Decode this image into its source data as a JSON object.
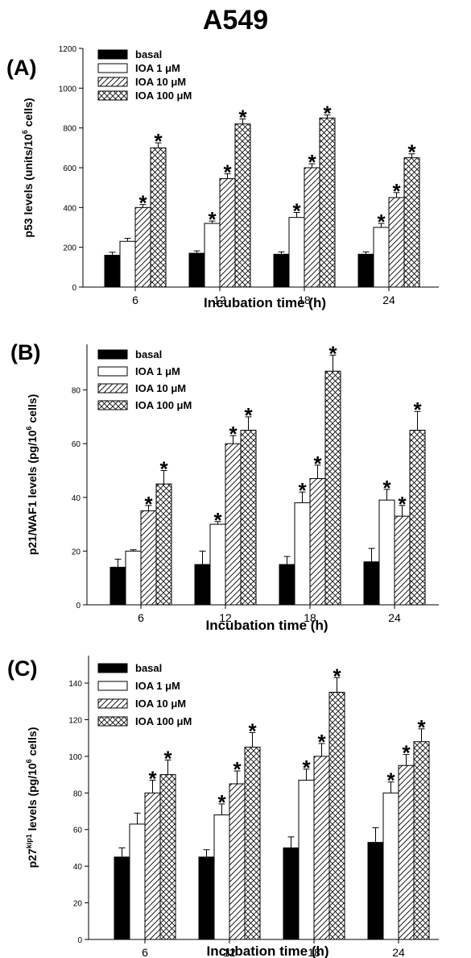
{
  "figure_title": "A549",
  "colors": {
    "basal": "#000000",
    "ioa": "#ffffff",
    "stroke": "#000000"
  },
  "legend_labels": [
    "basal",
    "IOA 1 μM",
    "IOA 10 μM",
    "IOA 100 μM"
  ],
  "chart_data": [
    {
      "type": "bar",
      "panel_label": "(A)",
      "title": "",
      "xlabel": "Incubation time (h)",
      "ylabel": "p53 levels (units/10^6 cells)",
      "ylabel_parts": {
        "pre": "p53 levels (units/10",
        "sup": "6",
        "post": " cells)"
      },
      "categories": [
        "6",
        "12",
        "18",
        "24"
      ],
      "ylim": [
        0,
        1200
      ],
      "yticks": [
        0,
        200,
        400,
        600,
        800,
        1000,
        1200
      ],
      "legend_position": "top-left",
      "series": [
        {
          "name": "basal",
          "pattern": "solid",
          "values": [
            160,
            170,
            165,
            165
          ],
          "errors": [
            15,
            12,
            12,
            12
          ],
          "significant": [
            false,
            false,
            false,
            false
          ]
        },
        {
          "name": "IOA 1 μM",
          "pattern": "open",
          "values": [
            230,
            320,
            350,
            300
          ],
          "errors": [
            15,
            12,
            25,
            20
          ],
          "significant": [
            false,
            true,
            true,
            true
          ]
        },
        {
          "name": "IOA 10 μM",
          "pattern": "hatch",
          "values": [
            400,
            545,
            600,
            450
          ],
          "errors": [
            15,
            25,
            20,
            25
          ],
          "significant": [
            true,
            true,
            true,
            true
          ]
        },
        {
          "name": "IOA 100 μM",
          "pattern": "crosshatch",
          "values": [
            700,
            820,
            850,
            650
          ],
          "errors": [
            25,
            25,
            15,
            20
          ],
          "significant": [
            true,
            true,
            true,
            true
          ]
        }
      ]
    },
    {
      "type": "bar",
      "panel_label": "(B)",
      "title": "",
      "xlabel": "Incubation time (h)",
      "ylabel": "p21/WAF1 levels (pg/10^6 cells)",
      "ylabel_parts": {
        "pre": "p21/WAF1 levels (pg/10",
        "sup": "6",
        "post": " cells)"
      },
      "categories": [
        "6",
        "12",
        "18",
        "24"
      ],
      "ylim": [
        0,
        97
      ],
      "yticks": [
        0,
        20,
        40,
        60,
        80
      ],
      "legend_position": "top-left",
      "series": [
        {
          "name": "basal",
          "pattern": "solid",
          "values": [
            14,
            15,
            15,
            16
          ],
          "errors": [
            3,
            5,
            3,
            5
          ],
          "significant": [
            false,
            false,
            false,
            false
          ]
        },
        {
          "name": "IOA 1 μM",
          "pattern": "open",
          "values": [
            20,
            30,
            38,
            39
          ],
          "errors": [
            0.5,
            1,
            4,
            4
          ],
          "significant": [
            false,
            true,
            true,
            true
          ]
        },
        {
          "name": "IOA 10 μM",
          "pattern": "hatch",
          "values": [
            35,
            60,
            47,
            33
          ],
          "errors": [
            2,
            3,
            5,
            4
          ],
          "significant": [
            true,
            true,
            true,
            true
          ]
        },
        {
          "name": "IOA 100 μM",
          "pattern": "crosshatch",
          "values": [
            45,
            65,
            87,
            65
          ],
          "errors": [
            5,
            5,
            6,
            7
          ],
          "significant": [
            true,
            true,
            true,
            true
          ]
        }
      ]
    },
    {
      "type": "bar",
      "panel_label": "(C)",
      "title": "",
      "xlabel": "Incubation time (h)",
      "ylabel": "p27kip1 levels (pg/10^6 cells)",
      "ylabel_parts": {
        "pre": "p27",
        "sup": "kip1",
        "post": " levels (pg/10",
        "sup2": "6",
        "post2": " cells)"
      },
      "categories": [
        "6",
        "12",
        "18",
        "24"
      ],
      "ylim": [
        0,
        155
      ],
      "yticks": [
        0,
        20,
        40,
        60,
        80,
        100,
        120,
        140
      ],
      "legend_position": "top-left",
      "series": [
        {
          "name": "basal",
          "pattern": "solid",
          "values": [
            45,
            45,
            50,
            53
          ],
          "errors": [
            5,
            4,
            6,
            8
          ],
          "significant": [
            false,
            false,
            false,
            false
          ]
        },
        {
          "name": "IOA 1 μM",
          "pattern": "open",
          "values": [
            63,
            68,
            87,
            80
          ],
          "errors": [
            6,
            6,
            6,
            6
          ],
          "significant": [
            false,
            true,
            true,
            true
          ]
        },
        {
          "name": "IOA 10 μM",
          "pattern": "hatch",
          "values": [
            80,
            85,
            100,
            95
          ],
          "errors": [
            7,
            7,
            7,
            6
          ],
          "significant": [
            true,
            true,
            true,
            true
          ]
        },
        {
          "name": "IOA 100 μM",
          "pattern": "crosshatch",
          "values": [
            90,
            105,
            135,
            108
          ],
          "errors": [
            8,
            8,
            8,
            7
          ],
          "significant": [
            true,
            true,
            true,
            true
          ]
        }
      ]
    }
  ],
  "significance_marker": "*"
}
